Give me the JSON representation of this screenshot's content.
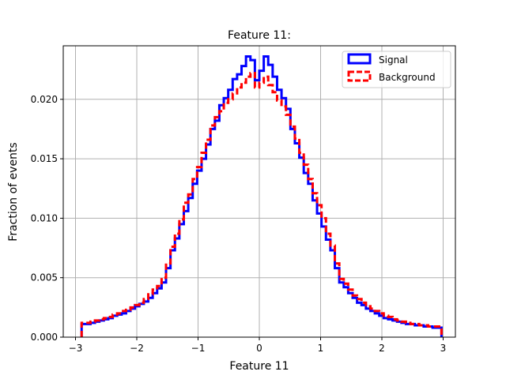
{
  "chart_data": {
    "type": "histogram-step",
    "title": "Feature 11:",
    "xlabel": "Feature 11",
    "ylabel": "Fraction of events",
    "xlim": [
      -3.2,
      3.2
    ],
    "ylim": [
      0.0,
      0.0245
    ],
    "grid": true,
    "legend_position": "top-right",
    "x_ticks": [
      -3,
      -2,
      -1,
      0,
      1,
      2,
      3
    ],
    "x_tick_labels": [
      "−3",
      "−2",
      "−1",
      "0",
      "1",
      "2",
      "3"
    ],
    "y_ticks": [
      0.0,
      0.005,
      0.01,
      0.015,
      0.02
    ],
    "y_tick_labels": [
      "0.000",
      "0.005",
      "0.010",
      "0.015",
      "0.020"
    ],
    "bin_edges_start": -2.9,
    "bin_width": 0.0725,
    "series": [
      {
        "name": "Signal",
        "color": "#0000ff",
        "style": "solid",
        "values": [
          0.0011,
          0.0011,
          0.0012,
          0.0013,
          0.0014,
          0.0015,
          0.0016,
          0.0018,
          0.0019,
          0.002,
          0.0022,
          0.0024,
          0.0026,
          0.0028,
          0.003,
          0.0033,
          0.0037,
          0.0041,
          0.0046,
          0.0058,
          0.0073,
          0.0083,
          0.0095,
          0.0106,
          0.0117,
          0.0129,
          0.014,
          0.015,
          0.0162,
          0.0175,
          0.0182,
          0.0195,
          0.0201,
          0.0208,
          0.0217,
          0.0221,
          0.0228,
          0.0236,
          0.0233,
          0.0216,
          0.0224,
          0.0236,
          0.0229,
          0.0219,
          0.0208,
          0.0201,
          0.0192,
          0.0175,
          0.0163,
          0.0151,
          0.0138,
          0.0129,
          0.0115,
          0.0104,
          0.0093,
          0.0082,
          0.0073,
          0.0058,
          0.0046,
          0.0042,
          0.0037,
          0.0033,
          0.0029,
          0.0027,
          0.0024,
          0.0022,
          0.002,
          0.0018,
          0.0016,
          0.0015,
          0.0014,
          0.0013,
          0.0012,
          0.0011,
          0.0011,
          0.001,
          0.001,
          0.0009,
          0.0009,
          0.0008,
          0.0008
        ]
      },
      {
        "name": "Background",
        "color": "#ff0000",
        "style": "dashed",
        "values": [
          0.0012,
          0.0012,
          0.0013,
          0.0014,
          0.0015,
          0.0016,
          0.0017,
          0.0019,
          0.002,
          0.0022,
          0.0023,
          0.0025,
          0.0027,
          0.0029,
          0.0032,
          0.0036,
          0.004,
          0.0043,
          0.005,
          0.0062,
          0.0076,
          0.0087,
          0.0099,
          0.0113,
          0.012,
          0.0133,
          0.0143,
          0.0155,
          0.0166,
          0.0178,
          0.0185,
          0.019,
          0.0197,
          0.02,
          0.0205,
          0.021,
          0.0214,
          0.0219,
          0.0222,
          0.021,
          0.0214,
          0.0219,
          0.0212,
          0.0206,
          0.0199,
          0.0194,
          0.0187,
          0.0177,
          0.0167,
          0.0155,
          0.0145,
          0.0133,
          0.0121,
          0.0111,
          0.01,
          0.0087,
          0.0077,
          0.0062,
          0.0049,
          0.0045,
          0.004,
          0.0035,
          0.0032,
          0.0029,
          0.0026,
          0.0024,
          0.0022,
          0.002,
          0.0018,
          0.0017,
          0.0015,
          0.0014,
          0.0013,
          0.0012,
          0.0011,
          0.0011,
          0.001,
          0.001,
          0.0009,
          0.0009,
          0.0009
        ]
      }
    ]
  }
}
